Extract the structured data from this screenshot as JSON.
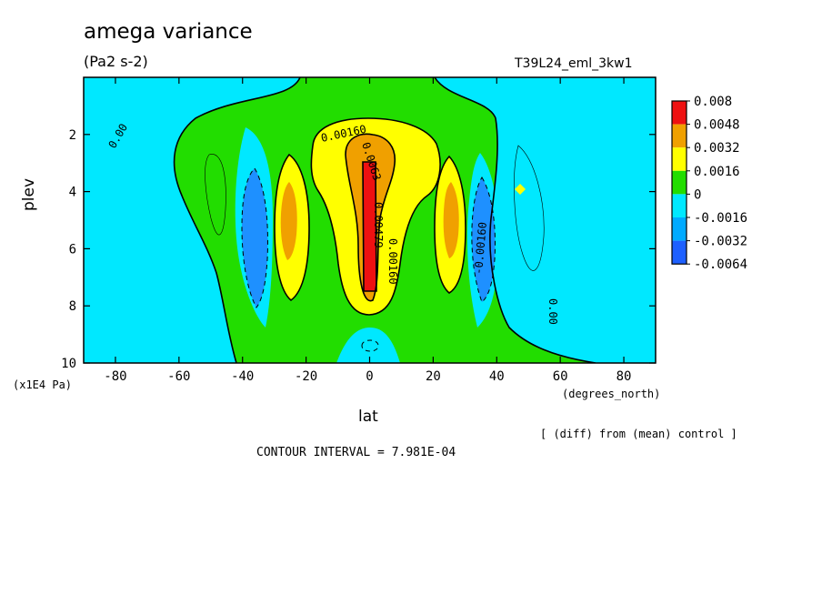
{
  "chart_data": {
    "type": "filled-contour",
    "title": "amega variance",
    "units": "(Pa2 s-2)",
    "run_label": "T39L24_eml_3kw1",
    "xlabel": "lat",
    "xunits": "(degrees_north)",
    "ylabel": "plev",
    "yunits": "(x1E4 Pa)",
    "xlim": [
      -90,
      90
    ],
    "ylim": [
      10,
      0
    ],
    "x_ticks": [
      -80,
      -60,
      -40,
      -20,
      0,
      20,
      40,
      60,
      80
    ],
    "y_ticks": [
      2,
      4,
      6,
      8,
      10
    ],
    "footnote": "[ (diff) from (mean) control ]",
    "contour_interval": "CONTOUR INTERVAL = 7.981E-04",
    "legend": [
      {
        "label": "0.008",
        "color": "#ee1111"
      },
      {
        "label": "0.0048",
        "color": "#f0a000"
      },
      {
        "label": "0.0032",
        "color": "#ffff00"
      },
      {
        "label": "0.0016",
        "color": "#22dd00"
      },
      {
        "label": "0",
        "color": "#00e8ff"
      },
      {
        "label": "-0.0016",
        "color": "#00aaff"
      },
      {
        "label": "-0.0032",
        "color": "#1e60ff"
      },
      {
        "label": "-0.0064",
        "color": ""
      }
    ],
    "contour_labels": [
      "0.00",
      "0.00160",
      "0.0063",
      "0.00479",
      "0.00160",
      "-0.00160",
      "0.00"
    ]
  }
}
